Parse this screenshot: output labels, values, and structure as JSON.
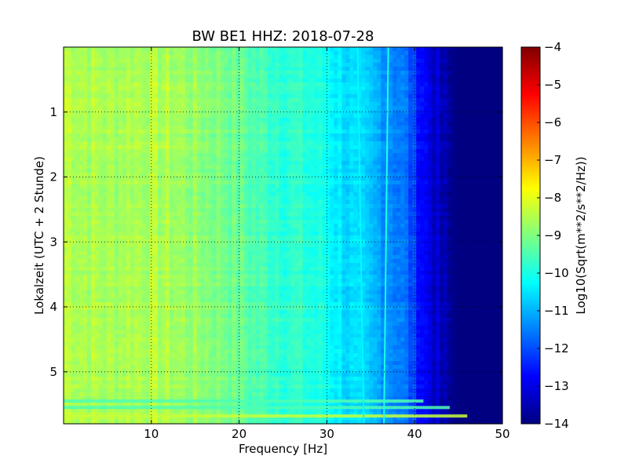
{
  "chart_data": {
    "type": "heatmap",
    "title": "BW BE1 HHZ: 2018-07-28",
    "xlabel": "Frequency [Hz]",
    "ylabel": "Lokalzeit (UTC + 2 Stunde)",
    "colorbar_label": "Log10(Sqrt(m**2/s**2/Hz))",
    "xlim": [
      0,
      50
    ],
    "ylim": [
      0,
      5.8
    ],
    "y_inverted": true,
    "x_ticks": [
      10,
      20,
      30,
      40,
      50
    ],
    "x_tick_labels": [
      "10",
      "20",
      "30",
      "40",
      "50"
    ],
    "y_ticks": [
      1,
      2,
      3,
      4,
      5
    ],
    "y_tick_labels": [
      "1",
      "2",
      "3",
      "4",
      "5"
    ],
    "color_range": [
      -14,
      -4
    ],
    "colorbar_ticks": [
      -4,
      -5,
      -6,
      -7,
      -8,
      -9,
      -10,
      -11,
      -12,
      -13,
      -14
    ],
    "colorbar_tick_labels": [
      "−4",
      "−5",
      "−6",
      "−7",
      "−8",
      "−9",
      "−10",
      "−11",
      "−12",
      "−13",
      "−14"
    ],
    "colormap": "jet",
    "grid": true,
    "spectrum_profile": {
      "frequency_hz": [
        0,
        2,
        5,
        8,
        10,
        12,
        15,
        18,
        20,
        22,
        25,
        28,
        30,
        32,
        34,
        36,
        38,
        39,
        40,
        41,
        42,
        43,
        44,
        45,
        46,
        48,
        50
      ],
      "log10_amplitude": [
        -8.3,
        -8.5,
        -8.6,
        -8.5,
        -8.5,
        -8.6,
        -8.8,
        -9.0,
        -9.2,
        -9.5,
        -9.7,
        -9.9,
        -10.1,
        -10.5,
        -10.8,
        -11.1,
        -11.4,
        -11.7,
        -12.2,
        -12.7,
        -13.1,
        -13.5,
        -13.8,
        -14.0,
        -14.0,
        -14.0,
        -14.0
      ]
    },
    "spectral_lines": [
      {
        "frequency_start_hz": 33.5,
        "frequency_end_hz": 34.2,
        "log10_amplitude": -10.3
      },
      {
        "frequency_start_hz": 37.0,
        "frequency_end_hz": 36.5,
        "log10_amplitude": -10.0
      }
    ],
    "transient_events": [
      {
        "time_h": 5.45,
        "max_frequency_hz": 41,
        "log10_amplitude": -9.5
      },
      {
        "time_h": 5.55,
        "max_frequency_hz": 44,
        "log10_amplitude": -9.5
      },
      {
        "time_h": 5.68,
        "max_frequency_hz": 46,
        "log10_amplitude": -8.3
      }
    ]
  }
}
